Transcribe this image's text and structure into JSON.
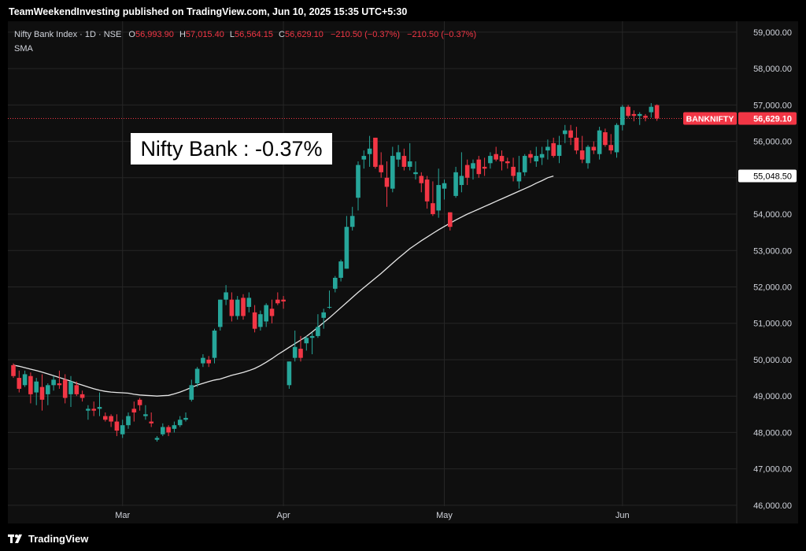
{
  "header": {
    "text": "TeamWeekendInvesting published on TradingView.com, Jun 10, 2025 15:35 UTC+5:30"
  },
  "legend": {
    "symbol": "Nifty Bank Index · 1D · NSE",
    "open_label": "O",
    "open": "56,993.90",
    "high_label": "H",
    "high": "57,015.40",
    "low_label": "L",
    "low": "56,564.15",
    "close_label": "C",
    "close": "56,629.10",
    "change": "−210.50 (−0.37%)",
    "change2": "−210.50 (−0.37%)",
    "indicator": "SMA"
  },
  "annotation": "Nifty Bank : -0.37%",
  "footer": {
    "brand": "TradingView"
  },
  "colors": {
    "up": "#26a69a",
    "down": "#f23645",
    "sma": "#e6e6e6",
    "grid": "#262626",
    "axis_text": "#d1d4dc"
  },
  "chart_data": {
    "type": "candlestick",
    "symbol": "BANKNIFTY",
    "ylim": [
      45500,
      59300
    ],
    "y_ticks": [
      46000,
      47000,
      48000,
      49000,
      50000,
      51000,
      52000,
      53000,
      54000,
      55000,
      56000,
      57000,
      58000,
      59000
    ],
    "y_tick_labels": [
      "46,000.00",
      "47,000.00",
      "48,000.00",
      "49,000.00",
      "50,000.00",
      "51,000.00",
      "52,000.00",
      "53,000.00",
      "54,000.00",
      "55,000.00",
      "56,000.00",
      "57,000.00",
      "58,000.00",
      "59,000.00"
    ],
    "x_ticks": [
      {
        "label": "Mar",
        "index": 19
      },
      {
        "label": "Apr",
        "index": 47
      },
      {
        "label": "May",
        "index": 75
      },
      {
        "label": "Jun",
        "index": 106
      }
    ],
    "last_price": {
      "label": "BANKNIFTY",
      "value": 56629.1,
      "text": "56,629.10"
    },
    "sma_last": {
      "value": 55048.5,
      "text": "55,048.50"
    },
    "candles": [
      [
        49850,
        49900,
        49500,
        49550
      ],
      [
        49500,
        49700,
        49100,
        49200
      ],
      [
        49300,
        49700,
        49250,
        49600
      ],
      [
        49550,
        49650,
        48800,
        49050
      ],
      [
        49100,
        49500,
        48750,
        49400
      ],
      [
        49250,
        49600,
        48600,
        48900
      ],
      [
        49050,
        49350,
        48750,
        49300
      ],
      [
        49300,
        49550,
        49150,
        49450
      ],
      [
        49350,
        49700,
        49200,
        49300
      ],
      [
        49450,
        49600,
        48800,
        48950
      ],
      [
        49050,
        49550,
        48700,
        49400
      ],
      [
        49300,
        49400,
        49000,
        49050
      ],
      [
        49050,
        49150,
        48850,
        48950
      ],
      [
        48600,
        48750,
        48350,
        48650
      ],
      [
        48650,
        48850,
        48450,
        48600
      ],
      [
        48650,
        49100,
        48450,
        48700
      ],
      [
        48450,
        48550,
        48300,
        48350
      ],
      [
        48450,
        48500,
        48150,
        48300
      ],
      [
        48300,
        48500,
        47900,
        48050
      ],
      [
        47950,
        48350,
        47850,
        48200
      ],
      [
        48200,
        48550,
        48100,
        48450
      ],
      [
        48650,
        48850,
        48300,
        48550
      ],
      [
        48900,
        48950,
        48600,
        48750
      ],
      [
        48450,
        48750,
        48350,
        48500
      ],
      [
        48300,
        48550,
        48150,
        48250
      ],
      [
        47800,
        47900,
        47750,
        47850
      ],
      [
        47950,
        48250,
        47900,
        48150
      ],
      [
        48150,
        48200,
        47900,
        48000
      ],
      [
        48100,
        48300,
        48000,
        48200
      ],
      [
        48200,
        48450,
        48150,
        48350
      ],
      [
        48350,
        48550,
        48300,
        48400
      ],
      [
        48900,
        49450,
        48850,
        49300
      ],
      [
        49350,
        49800,
        49250,
        49750
      ],
      [
        49900,
        50150,
        49800,
        50050
      ],
      [
        50000,
        50100,
        49800,
        49900
      ],
      [
        50050,
        50850,
        49900,
        50800
      ],
      [
        50900,
        51650,
        50800,
        51650
      ],
      [
        51650,
        52050,
        51500,
        51850
      ],
      [
        51650,
        51850,
        51050,
        51200
      ],
      [
        51200,
        51750,
        51100,
        51650
      ],
      [
        51700,
        51800,
        51100,
        51200
      ],
      [
        51450,
        51850,
        51300,
        51700
      ],
      [
        51300,
        51500,
        50750,
        50850
      ],
      [
        50900,
        51350,
        50800,
        51250
      ],
      [
        51050,
        51550,
        50900,
        51500
      ],
      [
        51400,
        51650,
        51000,
        51200
      ],
      [
        51650,
        51850,
        51500,
        51550
      ],
      [
        51650,
        51750,
        51400,
        51600
      ],
      [
        49300,
        49950,
        49200,
        49950
      ],
      [
        50050,
        50800,
        49950,
        50350
      ],
      [
        50300,
        50650,
        49950,
        50050
      ],
      [
        50450,
        50650,
        50250,
        50600
      ],
      [
        50600,
        50750,
        50150,
        50650
      ],
      [
        50650,
        51250,
        50600,
        50900
      ],
      [
        51150,
        51400,
        50850,
        51300
      ],
      [
        51450,
        51900,
        51400,
        51450
      ],
      [
        51950,
        52300,
        51850,
        52250
      ],
      [
        52250,
        52750,
        52150,
        52700
      ],
      [
        52500,
        53950,
        52500,
        53650
      ],
      [
        53650,
        54200,
        53550,
        53950
      ],
      [
        54450,
        55450,
        54100,
        55350
      ],
      [
        55500,
        55750,
        55250,
        55600
      ],
      [
        55650,
        56150,
        55300,
        55800
      ],
      [
        56100,
        56100,
        55250,
        55300
      ],
      [
        55350,
        55700,
        55000,
        55150
      ],
      [
        55000,
        55450,
        54200,
        54750
      ],
      [
        54700,
        55850,
        54600,
        55600
      ],
      [
        55500,
        55900,
        55300,
        55700
      ],
      [
        55600,
        55800,
        55200,
        55300
      ],
      [
        55300,
        55950,
        55200,
        55450
      ],
      [
        55100,
        55450,
        54950,
        55150
      ],
      [
        55050,
        55150,
        54600,
        54850
      ],
      [
        54950,
        55050,
        54150,
        54350
      ],
      [
        54300,
        54900,
        53950,
        54000
      ],
      [
        54100,
        55250,
        53900,
        54800
      ],
      [
        54700,
        54950,
        54400,
        54850
      ],
      [
        54050,
        54050,
        53550,
        53650
      ],
      [
        54500,
        55300,
        54450,
        55150
      ],
      [
        54800,
        55700,
        54600,
        55050
      ],
      [
        55350,
        55500,
        54800,
        55000
      ],
      [
        55250,
        55500,
        54950,
        55400
      ],
      [
        55500,
        55600,
        55000,
        55100
      ],
      [
        55300,
        55550,
        55050,
        55250
      ],
      [
        55400,
        55700,
        55250,
        55600
      ],
      [
        55650,
        55850,
        55450,
        55500
      ],
      [
        55600,
        55750,
        55200,
        55450
      ],
      [
        55450,
        55550,
        55250,
        55400
      ],
      [
        55300,
        55550,
        54900,
        55050
      ],
      [
        54900,
        55600,
        54700,
        55150
      ],
      [
        55150,
        55650,
        55050,
        55600
      ],
      [
        55650,
        55750,
        55400,
        55550
      ],
      [
        55450,
        55850,
        55300,
        55600
      ],
      [
        55550,
        55850,
        55350,
        55650
      ],
      [
        55750,
        56050,
        55500,
        55850
      ],
      [
        55950,
        56100,
        55550,
        55600
      ],
      [
        55600,
        56150,
        55400,
        55900
      ],
      [
        56200,
        56450,
        55950,
        56300
      ],
      [
        56300,
        56450,
        55900,
        56100
      ],
      [
        56100,
        56400,
        55650,
        55750
      ],
      [
        55750,
        56150,
        55400,
        55500
      ],
      [
        55400,
        55900,
        55250,
        55850
      ],
      [
        55850,
        56000,
        55650,
        55750
      ],
      [
        55650,
        56400,
        55500,
        56300
      ],
      [
        56250,
        56350,
        55850,
        55900
      ],
      [
        55900,
        56200,
        55650,
        55750
      ],
      [
        55700,
        56500,
        55550,
        56450
      ],
      [
        56450,
        57000,
        56300,
        56950
      ],
      [
        56950,
        57000,
        56650,
        56700
      ],
      [
        56750,
        56850,
        56550,
        56700
      ],
      [
        56700,
        56800,
        56450,
        56750
      ],
      [
        56700,
        56750,
        56550,
        56650
      ],
      [
        56800,
        57050,
        56650,
        56950
      ],
      [
        56993.9,
        57015.4,
        56564.15,
        56629.1
      ]
    ],
    "sma": [
      49850,
      49820,
      49780,
      49740,
      49700,
      49660,
      49610,
      49560,
      49510,
      49460,
      49410,
      49350,
      49300,
      49250,
      49200,
      49160,
      49130,
      49110,
      49100,
      49090,
      49080,
      49050,
      49030,
      49020,
      49010,
      49000,
      49010,
      49020,
      49060,
      49110,
      49170,
      49240,
      49300,
      49350,
      49400,
      49440,
      49470,
      49520,
      49570,
      49610,
      49650,
      49700,
      49760,
      49840,
      49930,
      50030,
      50140,
      50240,
      50340,
      50440,
      50540,
      50640,
      50760,
      50890,
      51020,
      51150,
      51290,
      51430,
      51570,
      51710,
      51850,
      51980,
      52110,
      52240,
      52370,
      52510,
      52650,
      52790,
      52920,
      53050,
      53160,
      53270,
      53370,
      53470,
      53570,
      53660,
      53750,
      53840,
      53920,
      54000,
      54070,
      54140,
      54210,
      54280,
      54350,
      54420,
      54490,
      54560,
      54630,
      54700,
      54770,
      54850,
      54920,
      55000,
      55048.5
    ]
  }
}
